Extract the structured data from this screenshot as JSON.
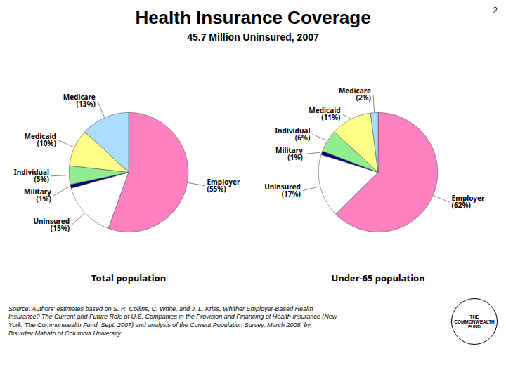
{
  "title": "Health Insurance Coverage",
  "subtitle": "45.7 Million Uninsured, 2007",
  "annotations": [
    "2",
    "Source: Authors' estimates based on S. R. Collins, C. White, and J. L. Kriss, Whither Employer-Based Health\nInsurance? The Current and Future Role of U.S. Companies in the Provision and Financing of Health Insurance (New\nYork: The Commonwealth Fund, Sept. 2007) and analysis of the Current Population Survey, March 2008, by\nBisurdev Mahato of Columbia University.",
    "THE\nCOMMONWEALTH\nFUND"
  ],
  "chart_data": [
    {
      "type": "pie",
      "title": "Total population",
      "categories": [
        "Employer",
        "Uninsured",
        "Military",
        "Individual",
        "Medicaid",
        "Medicare"
      ],
      "values": [
        55,
        15,
        1,
        5,
        10,
        13
      ],
      "value_labels": [
        "(55%)",
        "(15%)",
        "(1%)",
        "(5%)",
        "(10%)",
        "(13%)"
      ],
      "colors": [
        "#FF80C0",
        "#FFFFFF",
        "#000080",
        "#90EE90",
        "#FFFF88",
        "#AADDFF"
      ],
      "data_labels": true
    },
    {
      "type": "pie",
      "title": "Under-65 population",
      "categories": [
        "Employer",
        "Uninsured",
        "Military",
        "Individual",
        "Medicaid",
        "Medicare"
      ],
      "values": [
        62,
        17,
        1,
        6,
        11,
        2
      ],
      "value_labels": [
        "(62%)",
        "(17%)",
        "(1%)",
        "(6%)",
        "(11%)",
        "(2%)"
      ],
      "colors": [
        "#FF80C0",
        "#FFFFFF",
        "#000080",
        "#90EE90",
        "#FFFF88",
        "#AADDFF"
      ],
      "data_labels": true
    }
  ]
}
